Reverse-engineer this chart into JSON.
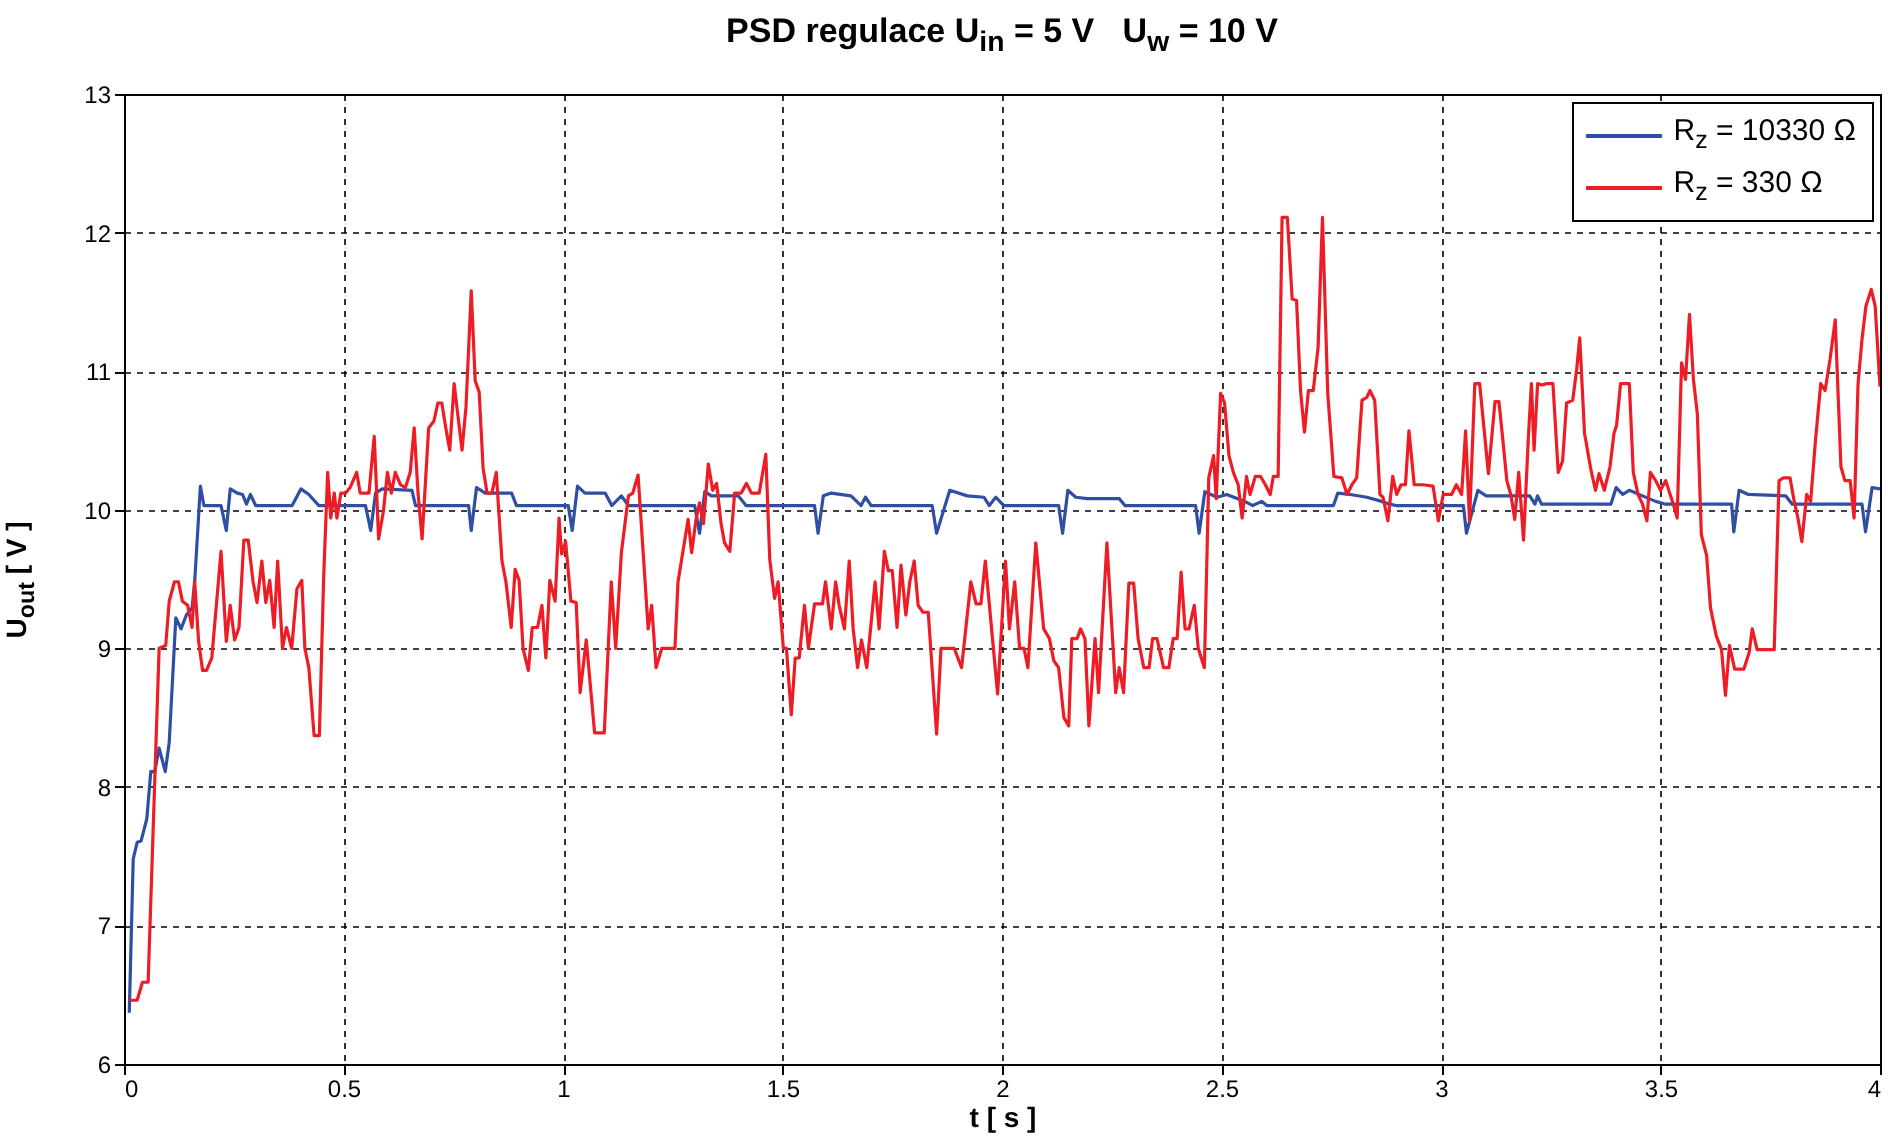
{
  "chart_data": {
    "type": "line",
    "title": "PSD regulace U$_{in}$ = 5 V   U$_{w}$ = 10 V",
    "xlabel": "t [ s ]",
    "ylabel": "U$_{out}$ [ V ]",
    "xlim": [
      0,
      4
    ],
    "ylim": [
      6,
      13
    ],
    "xticks": [
      0,
      0.5,
      1,
      1.5,
      2,
      2.5,
      3,
      3.5,
      4
    ],
    "yticks": [
      6,
      7,
      8,
      9,
      10,
      11,
      12,
      13
    ],
    "grid": true,
    "legend": "top right",
    "line_style": "solid",
    "series": [
      {
        "name": "R$_{z}$ = 10330 Ω",
        "color": "#2e4fa3",
        "x": [
          0.012,
          0.021,
          0.03,
          0.039,
          0.052,
          0.061,
          0.07,
          0.08,
          0.094,
          0.103,
          0.118,
          0.13,
          0.142,
          0.155,
          0.161,
          0.174,
          0.182,
          0.221,
          0.233,
          0.242,
          0.258,
          0.27,
          0.279,
          0.288,
          0.3,
          0.383,
          0.403,
          0.421,
          0.444,
          0.55,
          0.562,
          0.573,
          0.588,
          0.656,
          0.664,
          0.785,
          0.791,
          0.803,
          0.823,
          0.883,
          0.894,
          1.012,
          1.021,
          1.033,
          1.05,
          1.096,
          1.111,
          1.133,
          1.149,
          1.3,
          1.311,
          1.323,
          1.338,
          1.399,
          1.417,
          1.573,
          1.581,
          1.593,
          1.611,
          1.656,
          1.679,
          1.689,
          1.702,
          1.841,
          1.851,
          1.881,
          1.921,
          1.959,
          1.971,
          1.986,
          2.004,
          2.129,
          2.138,
          2.15,
          2.168,
          2.194,
          2.267,
          2.28,
          2.441,
          2.449,
          2.462,
          2.49,
          2.512,
          2.553,
          2.571,
          2.592,
          2.603,
          2.755,
          2.765,
          2.793,
          2.831,
          2.865,
          2.883,
          2.898,
          3.051,
          3.058,
          3.084,
          3.103,
          3.202,
          3.214,
          3.22,
          3.229,
          3.387,
          3.399,
          3.414,
          3.429,
          3.459,
          3.489,
          3.512,
          3.662,
          3.667,
          3.679,
          3.7,
          3.785,
          3.8,
          3.959,
          3.967,
          3.982,
          4.0
        ],
        "values": [
          6.37,
          7.48,
          7.6,
          7.61,
          7.77,
          8.11,
          8.11,
          8.28,
          8.11,
          8.32,
          9.22,
          9.14,
          9.24,
          9.29,
          9.48,
          10.17,
          10.03,
          10.03,
          9.85,
          10.15,
          10.12,
          10.11,
          10.04,
          10.11,
          10.03,
          10.03,
          10.15,
          10.11,
          10.03,
          10.03,
          9.85,
          10.12,
          10.15,
          10.14,
          10.03,
          10.03,
          9.85,
          10.16,
          10.12,
          10.12,
          10.03,
          10.03,
          9.85,
          10.17,
          10.12,
          10.12,
          10.03,
          10.1,
          10.03,
          10.03,
          9.83,
          10.13,
          10.1,
          10.1,
          10.03,
          10.03,
          9.83,
          10.1,
          10.12,
          10.1,
          10.03,
          10.09,
          10.03,
          10.03,
          9.83,
          10.14,
          10.1,
          10.09,
          10.03,
          10.09,
          10.03,
          10.03,
          9.83,
          10.14,
          10.09,
          10.08,
          10.08,
          10.03,
          10.03,
          9.83,
          10.13,
          10.09,
          10.11,
          10.06,
          10.03,
          10.06,
          10.03,
          10.03,
          10.12,
          10.11,
          10.09,
          10.06,
          10.04,
          10.03,
          10.03,
          9.83,
          10.14,
          10.1,
          10.1,
          10.04,
          10.1,
          10.04,
          10.04,
          10.16,
          10.11,
          10.14,
          10.1,
          10.06,
          10.04,
          10.04,
          9.84,
          10.14,
          10.11,
          10.1,
          10.04,
          10.04,
          9.84,
          10.16,
          10.15
        ]
      },
      {
        "name": "R$_{z}$ = 330 Ω",
        "color": "#ee1d25",
        "x": [
          0.012,
          0.03,
          0.042,
          0.055,
          0.08,
          0.095,
          0.103,
          0.115,
          0.124,
          0.133,
          0.145,
          0.155,
          0.161,
          0.17,
          0.179,
          0.188,
          0.2,
          0.221,
          0.233,
          0.242,
          0.252,
          0.262,
          0.273,
          0.283,
          0.294,
          0.303,
          0.314,
          0.323,
          0.332,
          0.342,
          0.35,
          0.361,
          0.37,
          0.382,
          0.394,
          0.405,
          0.412,
          0.421,
          0.433,
          0.445,
          0.455,
          0.464,
          0.471,
          0.479,
          0.485,
          0.494,
          0.505,
          0.515,
          0.53,
          0.538,
          0.558,
          0.57,
          0.58,
          0.591,
          0.6,
          0.609,
          0.618,
          0.63,
          0.641,
          0.652,
          0.661,
          0.67,
          0.679,
          0.694,
          0.706,
          0.715,
          0.724,
          0.733,
          0.742,
          0.752,
          0.77,
          0.779,
          0.791,
          0.8,
          0.809,
          0.818,
          0.827,
          0.838,
          0.848,
          0.861,
          0.87,
          0.882,
          0.891,
          0.9,
          0.909,
          0.921,
          0.93,
          0.942,
          0.952,
          0.961,
          0.97,
          0.982,
          0.991,
          0.997,
          1.006,
          1.018,
          1.03,
          1.039,
          1.053,
          1.072,
          1.094,
          1.11,
          1.12,
          1.133,
          1.149,
          1.159,
          1.171,
          1.194,
          1.202,
          1.212,
          1.225,
          1.255,
          1.262,
          1.285,
          1.293,
          1.303,
          1.311,
          1.32,
          1.331,
          1.341,
          1.35,
          1.36,
          1.368,
          1.38,
          1.391,
          1.406,
          1.418,
          1.429,
          1.447,
          1.462,
          1.471,
          1.482,
          1.49,
          1.502,
          1.509,
          1.52,
          1.529,
          1.538,
          1.55,
          1.559,
          1.573,
          1.591,
          1.598,
          1.611,
          1.621,
          1.629,
          1.641,
          1.652,
          1.661,
          1.671,
          1.68,
          1.692,
          1.711,
          1.72,
          1.732,
          1.741,
          1.75,
          1.761,
          1.77,
          1.781,
          1.79,
          1.8,
          1.809,
          1.82,
          1.832,
          1.851,
          1.861,
          1.891,
          1.908,
          1.929,
          1.941,
          1.952,
          1.962,
          1.99,
          2.008,
          2.017,
          2.029,
          2.04,
          2.05,
          2.059,
          2.077,
          2.095,
          2.108,
          2.118,
          2.129,
          2.141,
          2.152,
          2.159,
          2.171,
          2.179,
          2.189,
          2.198,
          2.212,
          2.22,
          2.239,
          2.259,
          2.267,
          2.277,
          2.289,
          2.3,
          2.31,
          2.323,
          2.335,
          2.343,
          2.353,
          2.368,
          2.38,
          2.39,
          2.399,
          2.408,
          2.417,
          2.426,
          2.438,
          2.447,
          2.461,
          2.471,
          2.482,
          2.488,
          2.498,
          2.507,
          2.517,
          2.527,
          2.538,
          2.547,
          2.557,
          2.565,
          2.577,
          2.589,
          2.6,
          2.611,
          2.618,
          2.629,
          2.638,
          2.65,
          2.661,
          2.671,
          2.68,
          2.689,
          2.698,
          2.709,
          2.72,
          2.73,
          2.742,
          2.756,
          2.774,
          2.786,
          2.797,
          2.808,
          2.82,
          2.831,
          2.838,
          2.849,
          2.861,
          2.868,
          2.879,
          2.89,
          2.899,
          2.909,
          2.919,
          2.927,
          2.939,
          2.959,
          2.982,
          2.994,
          3.005,
          3.024,
          3.035,
          3.047,
          3.056,
          3.065,
          3.077,
          3.088,
          3.108,
          3.123,
          3.132,
          3.141,
          3.15,
          3.159,
          3.168,
          3.177,
          3.188,
          3.199,
          3.206,
          3.212,
          3.22,
          3.229,
          3.241,
          3.255,
          3.267,
          3.277,
          3.286,
          3.3,
          3.309,
          3.316,
          3.327,
          3.342,
          3.352,
          3.36,
          3.372,
          3.385,
          3.394,
          3.4,
          3.409,
          3.429,
          3.438,
          3.449,
          3.459,
          3.469,
          3.477,
          3.489,
          3.5,
          3.512,
          3.522,
          3.532,
          3.538,
          3.548,
          3.557,
          3.566,
          3.575,
          3.584,
          3.593,
          3.605,
          3.614,
          3.627,
          3.639,
          3.648,
          3.657,
          3.669,
          3.69,
          3.702,
          3.709,
          3.72,
          3.741,
          3.759,
          3.77,
          3.78,
          3.795,
          3.804,
          3.813,
          3.822,
          3.833,
          3.842,
          3.853,
          3.865,
          3.875,
          3.886,
          3.898,
          3.911,
          3.92,
          3.932,
          3.941,
          3.95,
          3.959,
          3.968,
          3.98,
          3.989,
          4.0
        ],
        "values": [
          6.46,
          6.46,
          6.59,
          6.59,
          9.0,
          9.02,
          9.34,
          9.48,
          9.48,
          9.34,
          9.31,
          9.15,
          9.48,
          9.05,
          8.84,
          8.84,
          8.93,
          9.7,
          9.05,
          9.31,
          9.06,
          9.15,
          9.78,
          9.78,
          9.48,
          9.33,
          9.63,
          9.33,
          9.49,
          9.15,
          9.63,
          9.0,
          9.15,
          9.0,
          9.43,
          9.49,
          9.0,
          8.86,
          8.37,
          8.37,
          9.53,
          10.27,
          9.94,
          10.12,
          9.94,
          10.12,
          10.12,
          10.16,
          10.27,
          10.12,
          10.12,
          10.53,
          9.79,
          9.99,
          10.27,
          10.12,
          10.27,
          10.18,
          10.16,
          10.27,
          10.59,
          10.11,
          9.79,
          10.59,
          10.64,
          10.77,
          10.77,
          10.59,
          10.43,
          10.91,
          10.43,
          10.74,
          11.58,
          10.93,
          10.85,
          10.3,
          10.12,
          10.12,
          10.27,
          9.63,
          9.48,
          9.15,
          9.57,
          9.49,
          9.0,
          8.84,
          9.15,
          9.15,
          9.31,
          8.93,
          9.49,
          9.34,
          9.94,
          9.68,
          9.77,
          9.34,
          9.33,
          8.68,
          9.06,
          8.39,
          8.39,
          9.48,
          9.0,
          9.69,
          10.1,
          10.12,
          10.25,
          9.14,
          9.31,
          8.86,
          9.0,
          9.0,
          9.48,
          9.93,
          9.69,
          9.93,
          10.05,
          9.9,
          10.33,
          10.14,
          10.19,
          9.9,
          9.76,
          9.7,
          10.12,
          10.12,
          10.19,
          10.12,
          10.12,
          10.4,
          9.64,
          9.36,
          9.48,
          9.0,
          9.0,
          8.52,
          8.93,
          8.93,
          9.31,
          9.0,
          9.32,
          9.32,
          9.48,
          9.14,
          9.48,
          9.31,
          9.14,
          9.63,
          9.14,
          8.86,
          9.06,
          8.86,
          9.48,
          9.14,
          9.7,
          9.56,
          9.56,
          9.15,
          9.6,
          9.24,
          9.48,
          9.63,
          9.31,
          9.26,
          9.26,
          8.38,
          9.0,
          9.0,
          8.86,
          9.48,
          9.32,
          9.32,
          9.63,
          8.67,
          9.63,
          9.14,
          9.48,
          9.0,
          9.0,
          8.86,
          9.76,
          9.14,
          9.07,
          8.91,
          8.86,
          8.5,
          8.44,
          9.07,
          9.07,
          9.14,
          9.07,
          8.44,
          9.07,
          8.68,
          9.76,
          8.68,
          8.86,
          8.68,
          9.47,
          9.47,
          9.07,
          8.86,
          8.86,
          9.07,
          9.07,
          8.86,
          8.86,
          9.07,
          9.07,
          9.55,
          9.14,
          9.14,
          9.31,
          9.0,
          8.86,
          10.23,
          10.39,
          10.08,
          10.84,
          10.77,
          10.39,
          10.27,
          10.18,
          9.94,
          10.24,
          10.11,
          10.24,
          10.24,
          10.18,
          10.11,
          10.24,
          10.24,
          12.11,
          12.11,
          11.52,
          11.51,
          10.86,
          10.56,
          10.86,
          10.86,
          11.17,
          12.11,
          10.84,
          10.24,
          10.23,
          10.11,
          10.18,
          10.23,
          10.79,
          10.81,
          10.86,
          10.79,
          10.11,
          10.09,
          9.92,
          10.24,
          10.11,
          10.18,
          10.18,
          10.57,
          10.18,
          10.18,
          10.17,
          9.92,
          10.11,
          10.11,
          10.18,
          10.11,
          10.57,
          9.92,
          10.91,
          10.91,
          10.26,
          10.78,
          10.78,
          10.5,
          10.21,
          10.11,
          9.93,
          10.27,
          9.78,
          10.52,
          10.91,
          10.43,
          10.91,
          10.9,
          10.91,
          10.91,
          10.27,
          10.35,
          10.77,
          10.79,
          11.01,
          11.24,
          10.55,
          10.28,
          10.14,
          10.26,
          10.14,
          10.31,
          10.55,
          10.61,
          10.91,
          10.91,
          10.27,
          10.11,
          10.04,
          9.92,
          10.27,
          10.21,
          10.14,
          10.21,
          10.11,
          10.01,
          9.94,
          11.06,
          10.94,
          11.41,
          10.94,
          10.69,
          9.82,
          9.67,
          9.29,
          9.09,
          8.99,
          8.66,
          9.02,
          8.85,
          8.85,
          8.97,
          9.14,
          8.99,
          8.99,
          8.99,
          10.21,
          10.23,
          10.23,
          10.07,
          9.94,
          9.77,
          10.11,
          10.06,
          10.5,
          10.91,
          10.86,
          11.08,
          11.37,
          10.31,
          10.21,
          10.21,
          9.94,
          10.91,
          11.23,
          11.47,
          11.59,
          11.47,
          10.89
        ]
      }
    ]
  }
}
